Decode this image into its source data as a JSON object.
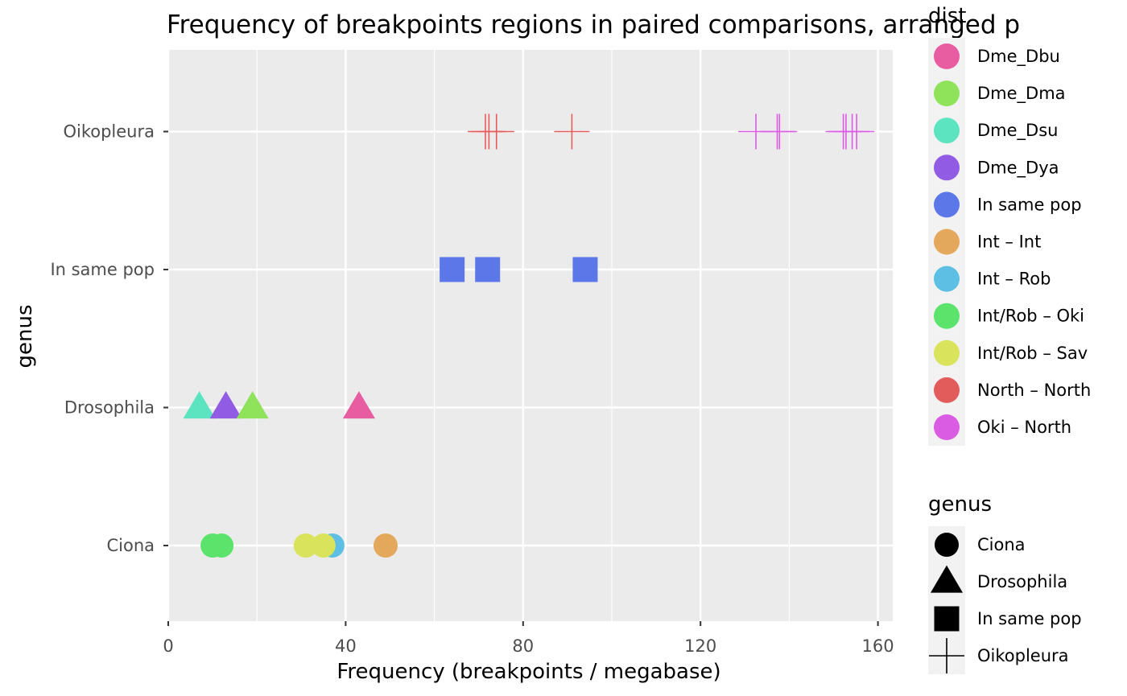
{
  "chart_data": {
    "type": "scatter",
    "title": "Frequency of breakpoints regions in paired comparisons, arranged p",
    "xlabel": "Frequency (breakpoints / megabase)",
    "ylabel": "genus",
    "xlim": [
      0,
      163
    ],
    "x_ticks": [
      0,
      40,
      80,
      120,
      160
    ],
    "x_tick_labels": [
      "0",
      "40",
      "80",
      "120",
      "160"
    ],
    "categories": [
      "Ciona",
      "Drosophila",
      "In same pop",
      "Oikopleura"
    ],
    "grid": true,
    "legend_position": "right",
    "color_legend": {
      "title": "dist",
      "entries": [
        {
          "label": "Dme_Dbu",
          "color": "#E85CA2"
        },
        {
          "label": "Dme_Dma",
          "color": "#8FE35B"
        },
        {
          "label": "Dme_Dsu",
          "color": "#5CE3BF"
        },
        {
          "label": "Dme_Dya",
          "color": "#915CE3"
        },
        {
          "label": "In same pop",
          "color": "#5C78E8"
        },
        {
          "label": "Int – Int",
          "color": "#E3A85C"
        },
        {
          "label": "Int – Rob",
          "color": "#5CBFE3"
        },
        {
          "label": "Int/Rob – Oki",
          "color": "#5CE36B"
        },
        {
          "label": "Int/Rob – Sav",
          "color": "#D9E35C"
        },
        {
          "label": "North – North",
          "color": "#E35C5C"
        },
        {
          "label": "Oki – North",
          "color": "#D95CE3"
        }
      ]
    },
    "shape_legend": {
      "title": "genus",
      "entries": [
        {
          "label": "Ciona",
          "shape": "circle"
        },
        {
          "label": "Drosophila",
          "shape": "triangle"
        },
        {
          "label": "In same pop",
          "shape": "square"
        },
        {
          "label": "Oikopleura",
          "shape": "cross"
        }
      ]
    },
    "points": [
      {
        "genus": "Ciona",
        "dist": "Int/Rob – Oki",
        "x": 10
      },
      {
        "genus": "Ciona",
        "dist": "Int/Rob – Oki",
        "x": 12
      },
      {
        "genus": "Ciona",
        "dist": "Int – Rob",
        "x": 37
      },
      {
        "genus": "Ciona",
        "dist": "Int/Rob – Sav",
        "x": 31
      },
      {
        "genus": "Ciona",
        "dist": "Int/Rob – Sav",
        "x": 35
      },
      {
        "genus": "Ciona",
        "dist": "Int – Int",
        "x": 49
      },
      {
        "genus": "Drosophila",
        "dist": "Dme_Dsu",
        "x": 7
      },
      {
        "genus": "Drosophila",
        "dist": "Dme_Dya",
        "x": 13
      },
      {
        "genus": "Drosophila",
        "dist": "Dme_Dma",
        "x": 19
      },
      {
        "genus": "Drosophila",
        "dist": "Dme_Dbu",
        "x": 43
      },
      {
        "genus": "In same pop",
        "dist": "In same pop",
        "x": 64
      },
      {
        "genus": "In same pop",
        "dist": "In same pop",
        "x": 72
      },
      {
        "genus": "In same pop",
        "dist": "In same pop",
        "x": 94
      },
      {
        "genus": "Oikopleura",
        "dist": "North – North",
        "x": 71.5
      },
      {
        "genus": "Oikopleura",
        "dist": "North – North",
        "x": 72.3
      },
      {
        "genus": "Oikopleura",
        "dist": "North – North",
        "x": 74
      },
      {
        "genus": "Oikopleura",
        "dist": "North – North",
        "x": 91
      },
      {
        "genus": "Oikopleura",
        "dist": "Oki – North",
        "x": 132.5
      },
      {
        "genus": "Oikopleura",
        "dist": "Oki – North",
        "x": 137.3
      },
      {
        "genus": "Oikopleura",
        "dist": "Oki – North",
        "x": 137.8
      },
      {
        "genus": "Oikopleura",
        "dist": "Oki – North",
        "x": 152.2
      },
      {
        "genus": "Oikopleura",
        "dist": "Oki – North",
        "x": 152.8
      },
      {
        "genus": "Oikopleura",
        "dist": "Oki – North",
        "x": 154.2
      },
      {
        "genus": "Oikopleura",
        "dist": "Oki – North",
        "x": 155.2
      }
    ]
  }
}
